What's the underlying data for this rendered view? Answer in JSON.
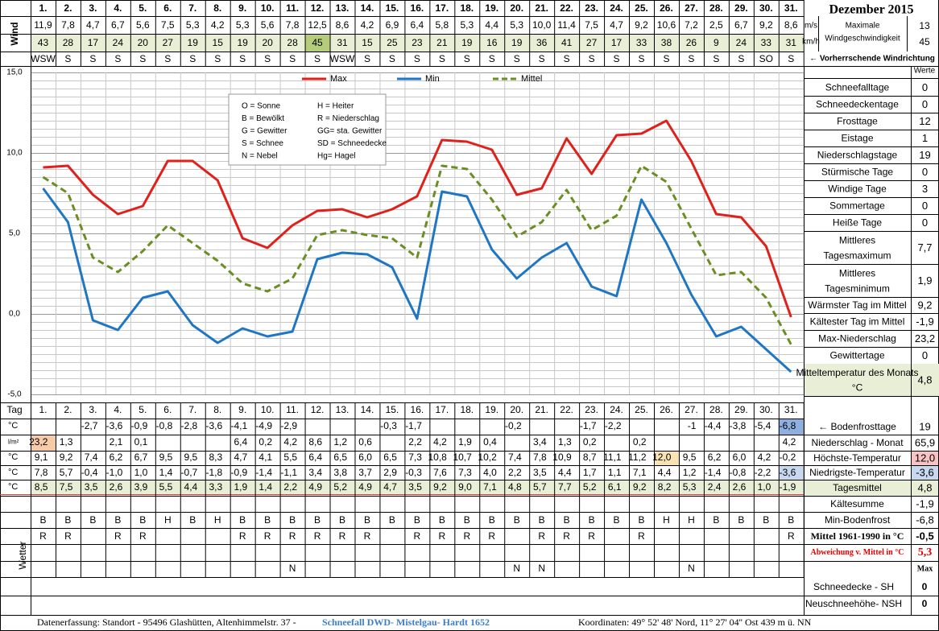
{
  "header": {
    "title": "Dezember 2015",
    "wind_label": "Wind",
    "unit_ms": "m/s",
    "unit_kmh": "km/h",
    "max_wind_label": "Maximale Windgeschwindigkeit",
    "max_ms": "13",
    "max_kmh": "45",
    "prev_dir_label": "← Vorherrschende Windrichtung",
    "werte_label": "Werte"
  },
  "days": [
    "1.",
    "2.",
    "3.",
    "4.",
    "5.",
    "6.",
    "7.",
    "8.",
    "9.",
    "10.",
    "11.",
    "12.",
    "13.",
    "14.",
    "15.",
    "16.",
    "17.",
    "18.",
    "19.",
    "20.",
    "21.",
    "22.",
    "23.",
    "24.",
    "25.",
    "26.",
    "27.",
    "28.",
    "29.",
    "30.",
    "31."
  ],
  "wind": {
    "ms": [
      "11,9",
      "7,8",
      "4,7",
      "6,7",
      "5,6",
      "7,5",
      "5,3",
      "4,2",
      "5,3",
      "5,6",
      "7,8",
      "12,5",
      "8,6",
      "4,2",
      "6,9",
      "6,4",
      "5,8",
      "5,3",
      "4,4",
      "5,3",
      "10,0",
      "11,4",
      "7,5",
      "4,7",
      "9,2",
      "10,6",
      "7,2",
      "2,5",
      "6,7",
      "9,2",
      "8,6"
    ],
    "kmh": [
      "43",
      "28",
      "17",
      "24",
      "20",
      "27",
      "19",
      "15",
      "19",
      "20",
      "28",
      "45",
      "31",
      "15",
      "25",
      "23",
      "21",
      "19",
      "16",
      "19",
      "36",
      "41",
      "27",
      "17",
      "33",
      "38",
      "26",
      "9",
      "24",
      "33",
      "31"
    ],
    "dir": [
      "WSW",
      "S",
      "S",
      "S",
      "S",
      "S",
      "S",
      "S",
      "S",
      "S",
      "S",
      "S",
      "WSW",
      "S",
      "S",
      "S",
      "S",
      "S",
      "S",
      "S",
      "S",
      "S",
      "S",
      "S",
      "S",
      "S",
      "S",
      "S",
      "S",
      "SO",
      "S"
    ]
  },
  "legend_box": {
    "items": [
      [
        "O = Sonne",
        "H = Heiter"
      ],
      [
        "B = Bewölkt",
        "R = Niederschlag"
      ],
      [
        "G = Gewitter",
        "GG= sta. Gewitter"
      ],
      [
        "S = Schnee",
        "SD = Schneedecke"
      ],
      [
        "N = Nebel",
        "Hg= Hagel"
      ]
    ]
  },
  "chart_data": {
    "type": "line",
    "x": [
      1,
      2,
      3,
      4,
      5,
      6,
      7,
      8,
      9,
      10,
      11,
      12,
      13,
      14,
      15,
      16,
      17,
      18,
      19,
      20,
      21,
      22,
      23,
      24,
      25,
      26,
      27,
      28,
      29,
      30,
      31
    ],
    "ylim": [
      -5,
      15
    ],
    "yticks": [
      "15,0",
      "10,0",
      "5,0",
      "0,0",
      "-5,0"
    ],
    "grid": true,
    "legend_position": "top",
    "series": [
      {
        "name": "Max",
        "color": "#e0201b",
        "values": [
          9.1,
          9.2,
          7.4,
          6.2,
          6.7,
          9.5,
          9.5,
          8.3,
          4.7,
          4.1,
          5.5,
          6.4,
          6.5,
          6.0,
          6.5,
          7.3,
          10.8,
          10.7,
          10.2,
          7.4,
          7.8,
          10.9,
          8.7,
          11.1,
          11.2,
          12.0,
          9.5,
          6.2,
          6.0,
          4.2,
          -0.2
        ]
      },
      {
        "name": "Min",
        "color": "#1f77c4",
        "values": [
          7.8,
          5.7,
          -0.4,
          -1.0,
          1.0,
          1.4,
          -0.7,
          -1.8,
          -0.9,
          -1.4,
          -1.1,
          3.4,
          3.8,
          3.7,
          2.9,
          -0.3,
          7.6,
          7.3,
          4.0,
          2.2,
          3.5,
          4.4,
          1.7,
          1.1,
          7.1,
          4.4,
          1.2,
          -1.4,
          -0.8,
          -2.2,
          -3.6
        ]
      },
      {
        "name": "Mittel",
        "color": "#6b8e23",
        "values": [
          8.5,
          7.5,
          3.5,
          2.6,
          3.9,
          5.5,
          4.4,
          3.3,
          1.9,
          1.4,
          2.2,
          4.9,
          5.2,
          4.9,
          4.7,
          3.5,
          9.2,
          9.0,
          7.1,
          4.8,
          5.7,
          7.7,
          5.2,
          6.1,
          9.2,
          8.2,
          5.3,
          2.4,
          2.6,
          1.0,
          -1.9
        ]
      }
    ]
  },
  "stats": [
    {
      "label": "Schneefalltage",
      "value": "0"
    },
    {
      "label": "Schneedeckentage",
      "value": "0"
    },
    {
      "label": "Frosttage",
      "value": "12"
    },
    {
      "label": "Eistage",
      "value": "1"
    },
    {
      "label": "Niederschlagstage",
      "value": "19"
    },
    {
      "label": "Stürmische Tage",
      "value": "0"
    },
    {
      "label": "Windige Tage",
      "value": "3"
    },
    {
      "label": "Sommertage",
      "value": "0"
    },
    {
      "label": "Heiße Tage",
      "value": "0"
    },
    {
      "label": "Mittleres Tagesmaximum",
      "value": "7,7"
    },
    {
      "label": "Mittleres Tagesminimum",
      "value": "1,9"
    },
    {
      "label": "Wärmster Tag im Mittel",
      "value": "9,2"
    },
    {
      "label": "Kältester Tag im Mittel",
      "value": "-1,9"
    },
    {
      "label": "Max-Niederschlag",
      "value": "23,2"
    },
    {
      "label": "Gewittertage",
      "value": "0"
    },
    {
      "label": "Mitteltemperatur des Monats °C",
      "value": "4,8"
    }
  ],
  "bottom": {
    "tag_label": "Tag",
    "row_units": [
      "°C",
      "l/m²",
      "°C",
      "°C",
      "°C"
    ],
    "bodenfrost": [
      "",
      "",
      "-2,7",
      "-3,6",
      "-0,9",
      "-0,8",
      "-2,8",
      "-3,6",
      "-4,1",
      "-4,9",
      "-2,9",
      "",
      "",
      "",
      "-0,3",
      "-1,7",
      "",
      "",
      "",
      "-0,2",
      "",
      "",
      "-1,7",
      "-2,2",
      "",
      "",
      "-1",
      "-4,4",
      "-3,8",
      "-5,4",
      "-6,8"
    ],
    "niederschlag": [
      "23,2",
      "1,3",
      "",
      "2,1",
      "0,1",
      "",
      "",
      "",
      "6,4",
      "0,2",
      "4,2",
      "8,6",
      "1,2",
      "0,6",
      "",
      "2,2",
      "4,2",
      "1,9",
      "0,4",
      "",
      "3,4",
      "1,3",
      "0,2",
      "",
      "0,2",
      "",
      "",
      "",
      "",
      "",
      "4,2"
    ],
    "max": [
      "9,1",
      "9,2",
      "7,4",
      "6,2",
      "6,7",
      "9,5",
      "9,5",
      "8,3",
      "4,7",
      "4,1",
      "5,5",
      "6,4",
      "6,5",
      "6,0",
      "6,5",
      "7,3",
      "10,8",
      "10,7",
      "10,2",
      "7,4",
      "7,8",
      "10,9",
      "8,7",
      "11,1",
      "11,2",
      "12,0",
      "9,5",
      "6,2",
      "6,0",
      "4,2",
      "-0,2"
    ],
    "min": [
      "7,8",
      "5,7",
      "-0,4",
      "-1,0",
      "1,0",
      "1,4",
      "-0,7",
      "-1,8",
      "-0,9",
      "-1,4",
      "-1,1",
      "3,4",
      "3,8",
      "3,7",
      "2,9",
      "-0,3",
      "7,6",
      "7,3",
      "4,0",
      "2,2",
      "3,5",
      "4,4",
      "1,7",
      "1,1",
      "7,1",
      "4,4",
      "1,2",
      "-1,4",
      "-0,8",
      "-2,2",
      "-3,6"
    ],
    "mittel": [
      "8,5",
      "7,5",
      "3,5",
      "2,6",
      "3,9",
      "5,5",
      "4,4",
      "3,3",
      "1,9",
      "1,4",
      "2,2",
      "4,9",
      "5,2",
      "4,9",
      "4,7",
      "3,5",
      "9,2",
      "9,0",
      "7,1",
      "4,8",
      "5,7",
      "7,7",
      "5,2",
      "6,1",
      "9,2",
      "8,2",
      "5,3",
      "2,4",
      "2,6",
      "1,0",
      "-1,9"
    ],
    "wetter_label": "Wetter",
    "wetter": [
      [
        "B",
        "B",
        "B",
        "B",
        "B",
        "H",
        "B",
        "H",
        "B",
        "B",
        "B",
        "B",
        "B",
        "B",
        "B",
        "B",
        "B",
        "B",
        "B",
        "B",
        "B",
        "B",
        "B",
        "B",
        "B",
        "H",
        "H",
        "B",
        "B",
        "B",
        "B"
      ],
      [
        "R",
        "R",
        "",
        "R",
        "R",
        "",
        "",
        "",
        "R",
        "R",
        "R",
        "R",
        "R",
        "R",
        "",
        "R",
        "R",
        "R",
        "R",
        "",
        "R",
        "R",
        "R",
        "",
        "R",
        "",
        "",
        "",
        "",
        "",
        "R"
      ],
      [
        "",
        "",
        "",
        "",
        "",
        "",
        "",
        "",
        "",
        "",
        "",
        "",
        "",
        "",
        "",
        "",
        "",
        "",
        "",
        "",
        "",
        "",
        "",
        "",
        "",
        "",
        "",
        "",
        "",
        "",
        ""
      ],
      [
        "",
        "",
        "",
        "",
        "",
        "",
        "",
        "",
        "",
        "",
        "N",
        "",
        "",
        "",
        "",
        "",
        "",
        "",
        "",
        "N",
        "N",
        "",
        "",
        "",
        "",
        "",
        "N",
        "",
        "",
        "",
        ""
      ]
    ]
  },
  "bottom_right": [
    {
      "label": "← Bodenfrosttage",
      "value": "19"
    },
    {
      "label": "Niederschlag - Monat",
      "value": "65,9"
    },
    {
      "label": "Höchste-Temperatur",
      "value": "12,0"
    },
    {
      "label": "Niedrigste-Temperatur",
      "value": "-3,6"
    },
    {
      "label": "Tagesmittel",
      "value": "4,8"
    },
    {
      "label": "Kältesumme",
      "value": "-1,9"
    },
    {
      "label": "Min-Bodenfrost",
      "value": "-6,8"
    },
    {
      "label": "Mittel 1961-1990 in °C",
      "value": "-0,5"
    },
    {
      "label": "Abweichung v. Mittel in °C",
      "value": "5,3"
    },
    {
      "label": "",
      "value": "Max"
    }
  ],
  "snow": [
    {
      "label": "Schneedecke -  SH",
      "value": "0"
    },
    {
      "label": "Neuschneehöhe- NSH",
      "value": "0"
    }
  ],
  "footer": {
    "left": "Datenerfassung:  Standort -   95496  Glashütten, Altenhimmelstr. 37 - ",
    "link": "Schneefall DWD- Mistelgau- Hardt 1652",
    "coords": "Koordinaten:  49° 52' 48' Nord,   11° 27' 04'' Ost   439 m ü. NN"
  },
  "colors": {
    "max": "#e0201b",
    "min": "#1f77c4",
    "mittel": "#6b8e23",
    "highlight_green": "#e9efd6",
    "highlight_orange": "#f7caa8",
    "highlight_blue": "#8fb0de",
    "red_text": "#e00000"
  }
}
